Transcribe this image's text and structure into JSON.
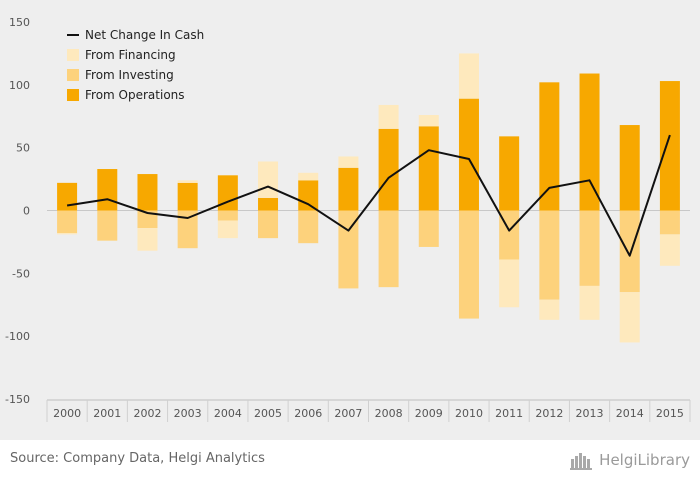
{
  "chart_data": {
    "type": "bar",
    "stacked": true,
    "categories": [
      "2000",
      "2001",
      "2002",
      "2003",
      "2004",
      "2005",
      "2006",
      "2007",
      "2008",
      "2009",
      "2010",
      "2011",
      "2012",
      "2013",
      "2014",
      "2015"
    ],
    "series": [
      {
        "name": "From Operations",
        "kind": "bar",
        "color": "#f7a800",
        "values": [
          22,
          33,
          29,
          22,
          28,
          10,
          24,
          34,
          65,
          67,
          89,
          59,
          102,
          109,
          68,
          103
        ]
      },
      {
        "name": "From Investing",
        "kind": "bar",
        "color": "#fdd27c",
        "values": [
          -18,
          -24,
          -14,
          -30,
          -8,
          -22,
          -26,
          -62,
          -61,
          -29,
          -86,
          -39,
          -71,
          -60,
          -65,
          -19
        ]
      },
      {
        "name": "From Financing",
        "kind": "bar",
        "color": "#fee9bd",
        "values": [
          -1,
          0,
          -18,
          2,
          -14,
          29,
          6,
          9,
          19,
          9,
          36,
          -38,
          -16,
          -27,
          -40,
          -25
        ]
      },
      {
        "name": "Net Change In Cash",
        "kind": "line",
        "color": "#111111",
        "values": [
          4,
          9,
          -2,
          -6,
          7,
          19,
          5,
          -16,
          26,
          48,
          41,
          -16,
          18,
          24,
          -36,
          60
        ]
      }
    ],
    "ylim": [
      -150,
      150
    ],
    "yticks": [
      150,
      100,
      50,
      0,
      -50,
      -100,
      -150
    ],
    "legend": [
      "Net Change In Cash",
      "From Financing",
      "From Investing",
      "From Operations"
    ],
    "legend_position": "top-left",
    "grid": "horizontal zero line",
    "title": "",
    "xlabel": "",
    "ylabel": ""
  },
  "footer": {
    "source": "Source: Company Data, Helgi Analytics",
    "logo_text": "HelgiLibrary",
    "logo_icon": "helgi-library-icon"
  }
}
